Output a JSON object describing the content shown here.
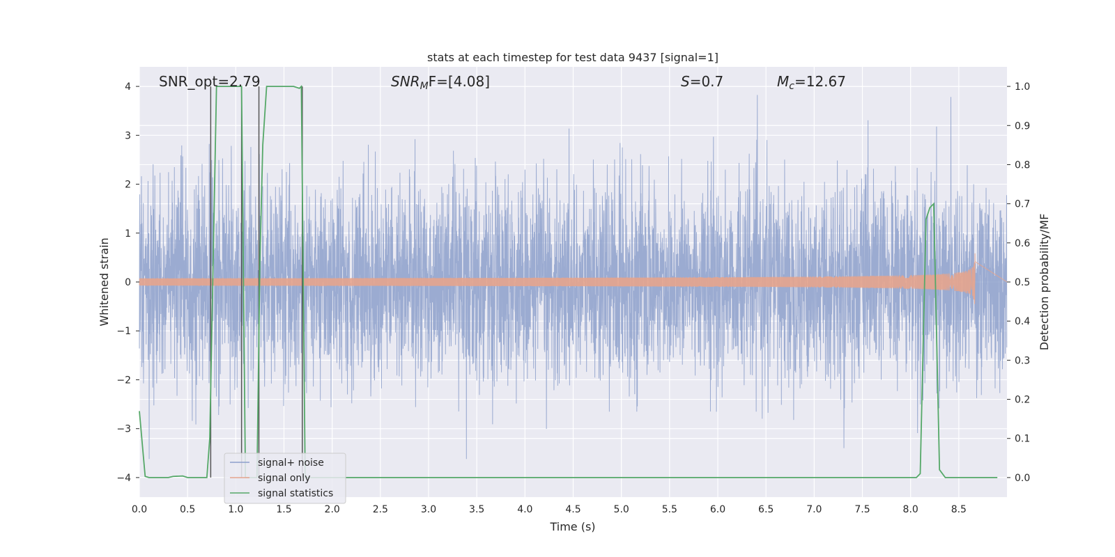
{
  "chart_data": {
    "type": "line",
    "title": "stats at each timestep for test data 9437 [signal=1]",
    "xlabel": "Time (s)",
    "ylabel": "Whitened strain",
    "y2label": "Detection probability/MF",
    "xlim": [
      0.0,
      9.0
    ],
    "ylim": [
      -4.4,
      4.4
    ],
    "y2lim": [
      -0.05,
      1.05
    ],
    "x_ticks": [
      0.0,
      0.5,
      1.0,
      1.5,
      2.0,
      2.5,
      3.0,
      3.5,
      4.0,
      4.5,
      5.0,
      5.5,
      6.0,
      6.5,
      7.0,
      7.5,
      8.0,
      8.5
    ],
    "x_tick_labels": [
      "0.0",
      "0.5",
      "1.0",
      "1.5",
      "2.0",
      "2.5",
      "3.0",
      "3.5",
      "4.0",
      "4.5",
      "5.0",
      "5.5",
      "6.0",
      "6.5",
      "7.0",
      "7.5",
      "8.0",
      "8.5"
    ],
    "y_ticks": [
      -4,
      -3,
      -2,
      -1,
      0,
      1,
      2,
      3,
      4
    ],
    "y_tick_labels": [
      "−4",
      "−3",
      "−2",
      "−1",
      "0",
      "1",
      "2",
      "3",
      "4"
    ],
    "y2_ticks": [
      0.0,
      0.1,
      0.2,
      0.3,
      0.4,
      0.5,
      0.6,
      0.7,
      0.8,
      0.9,
      1.0
    ],
    "y2_tick_labels": [
      "0.0",
      "0.1",
      "0.2",
      "0.3",
      "0.4",
      "0.5",
      "0.6",
      "0.7",
      "0.8",
      "0.9",
      "1.0"
    ],
    "grid": true,
    "legend_position": "lower-left",
    "annotations": {
      "snr_opt": "SNR_opt=2.79",
      "snr_mf_main": "SNR",
      "snr_mf_sub": "M",
      "snr_mf_rest": "F=[4.08]",
      "s_italic": "S",
      "s_rest": "=0.7",
      "mc_italic": "M",
      "mc_sub": "c",
      "mc_rest": "=12.67"
    },
    "series": [
      {
        "name": "signal+ noise",
        "color": "#8da0cb",
        "kind": "noise",
        "sample_rate_hz": 512,
        "std": 1.0,
        "peak_min": -3.62,
        "peak_max": 4.0
      },
      {
        "name": "signal only",
        "color": "#e5a48d",
        "kind": "chirp",
        "merger_time": 8.67,
        "peak_amplitude": 0.6,
        "min_amplitude": -0.45
      },
      {
        "name": "signal statistics",
        "color": "#55a868",
        "axis": "right",
        "x": [
          0.0,
          0.06,
          0.1,
          0.2,
          0.3,
          0.35,
          0.45,
          0.5,
          0.7,
          0.73,
          0.8,
          0.83,
          0.9,
          1.0,
          1.06,
          1.1,
          1.15,
          1.22,
          1.25,
          1.28,
          1.32,
          1.4,
          1.5,
          1.6,
          1.66,
          1.68,
          1.72,
          1.76,
          1.8,
          2.0,
          3.0,
          4.0,
          5.0,
          6.0,
          7.0,
          8.0,
          8.06,
          8.1,
          8.16,
          8.2,
          8.24,
          8.3,
          8.36,
          8.45,
          8.6,
          8.9
        ],
        "y": [
          0.17,
          0.003,
          0.0,
          0.0,
          0.0,
          0.003,
          0.004,
          0.0,
          0.0,
          0.1,
          1.0,
          1.0,
          1.0,
          1.0,
          1.0,
          0.0,
          0.0,
          0.0,
          0.55,
          0.85,
          1.0,
          1.0,
          1.0,
          1.0,
          0.995,
          1.0,
          0.0,
          0.0,
          0.0,
          0.0,
          0.0,
          0.0,
          0.0,
          0.0,
          0.0,
          0.0,
          0.0,
          0.01,
          0.66,
          0.69,
          0.7,
          0.02,
          0.0,
          0.0,
          0.0,
          0.0
        ]
      }
    ],
    "vlines": [
      {
        "x": 0.74,
        "ymin": -4.0,
        "ymax": 4.0,
        "color": "#555555"
      },
      {
        "x": 1.06,
        "ymin": -4.0,
        "ymax": 4.0,
        "color": "#555555"
      },
      {
        "x": 1.24,
        "ymin": -4.0,
        "ymax": 4.0,
        "color": "#555555"
      },
      {
        "x": 1.69,
        "ymin": -4.0,
        "ymax": 4.0,
        "color": "#555555"
      }
    ]
  }
}
